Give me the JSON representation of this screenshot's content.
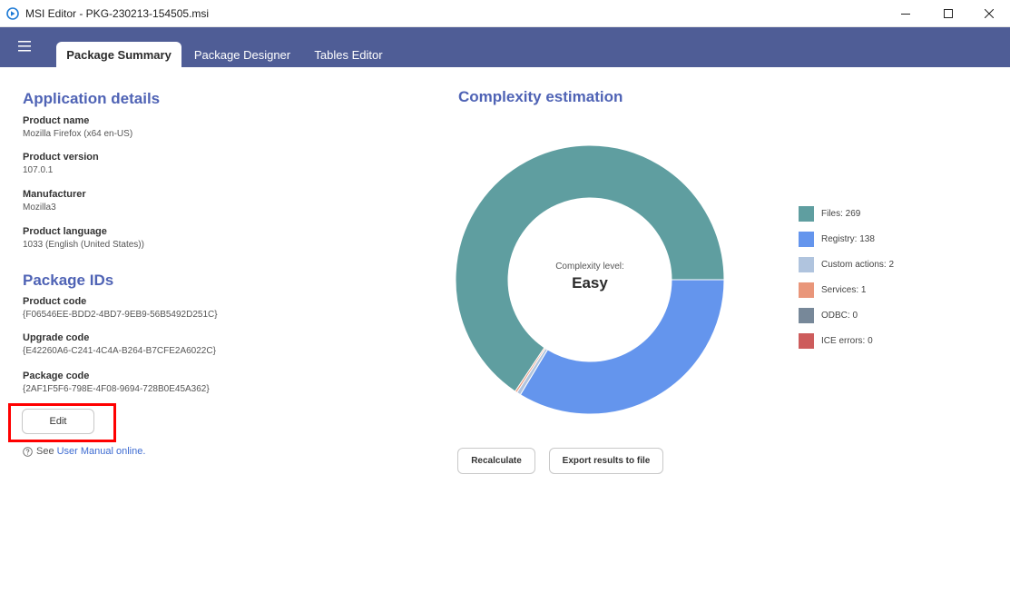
{
  "window": {
    "title": "MSI Editor - PKG-230213-154505.msi"
  },
  "tabs": [
    {
      "label": "Package Summary",
      "active": true
    },
    {
      "label": "Package Designer",
      "active": false
    },
    {
      "label": "Tables Editor",
      "active": false
    }
  ],
  "app_details": {
    "title": "Application details",
    "fields": [
      {
        "label": "Product name",
        "value": "Mozilla Firefox (x64 en-US)"
      },
      {
        "label": "Product version",
        "value": "107.0.1"
      },
      {
        "label": "Manufacturer",
        "value": "Mozilla3"
      },
      {
        "label": "Product language",
        "value": "1033  (English (United States))"
      }
    ]
  },
  "package_ids": {
    "title": "Package IDs",
    "fields": [
      {
        "label": "Product code",
        "value": "{F06546EE-BDD2-4BD7-9EB9-56B5492D251C}"
      },
      {
        "label": "Upgrade code",
        "value": "{E42260A6-C241-4C4A-B264-B7CFE2A6022C}"
      },
      {
        "label": "Package code",
        "value": "{2AF1F5F6-798E-4F08-9694-728B0E45A362}"
      }
    ],
    "edit_label": "Edit"
  },
  "help": {
    "prefix": "See",
    "link": "User Manual online."
  },
  "complexity": {
    "title": "Complexity estimation",
    "level_label": "Complexity level:",
    "level_value": "Easy",
    "legend": [
      {
        "label": "Files: 269",
        "value": 269,
        "color": "#5f9ea0"
      },
      {
        "label": "Registry: 138",
        "value": 138,
        "color": "#6495ed"
      },
      {
        "label": "Custom actions: 2",
        "value": 2,
        "color": "#b0c4de"
      },
      {
        "label": "Services: 1",
        "value": 1,
        "color": "#e9967a"
      },
      {
        "label": "ODBC: 0",
        "value": 0,
        "color": "#778899"
      },
      {
        "label": "ICE errors: 0",
        "value": 0,
        "color": "#cd5c5c"
      }
    ],
    "recalculate_label": "Recalculate",
    "export_label": "Export results to file"
  },
  "colors": {
    "header": "#4f5d96",
    "accent_title": "#4f63b5",
    "link": "#3d6bd1"
  }
}
